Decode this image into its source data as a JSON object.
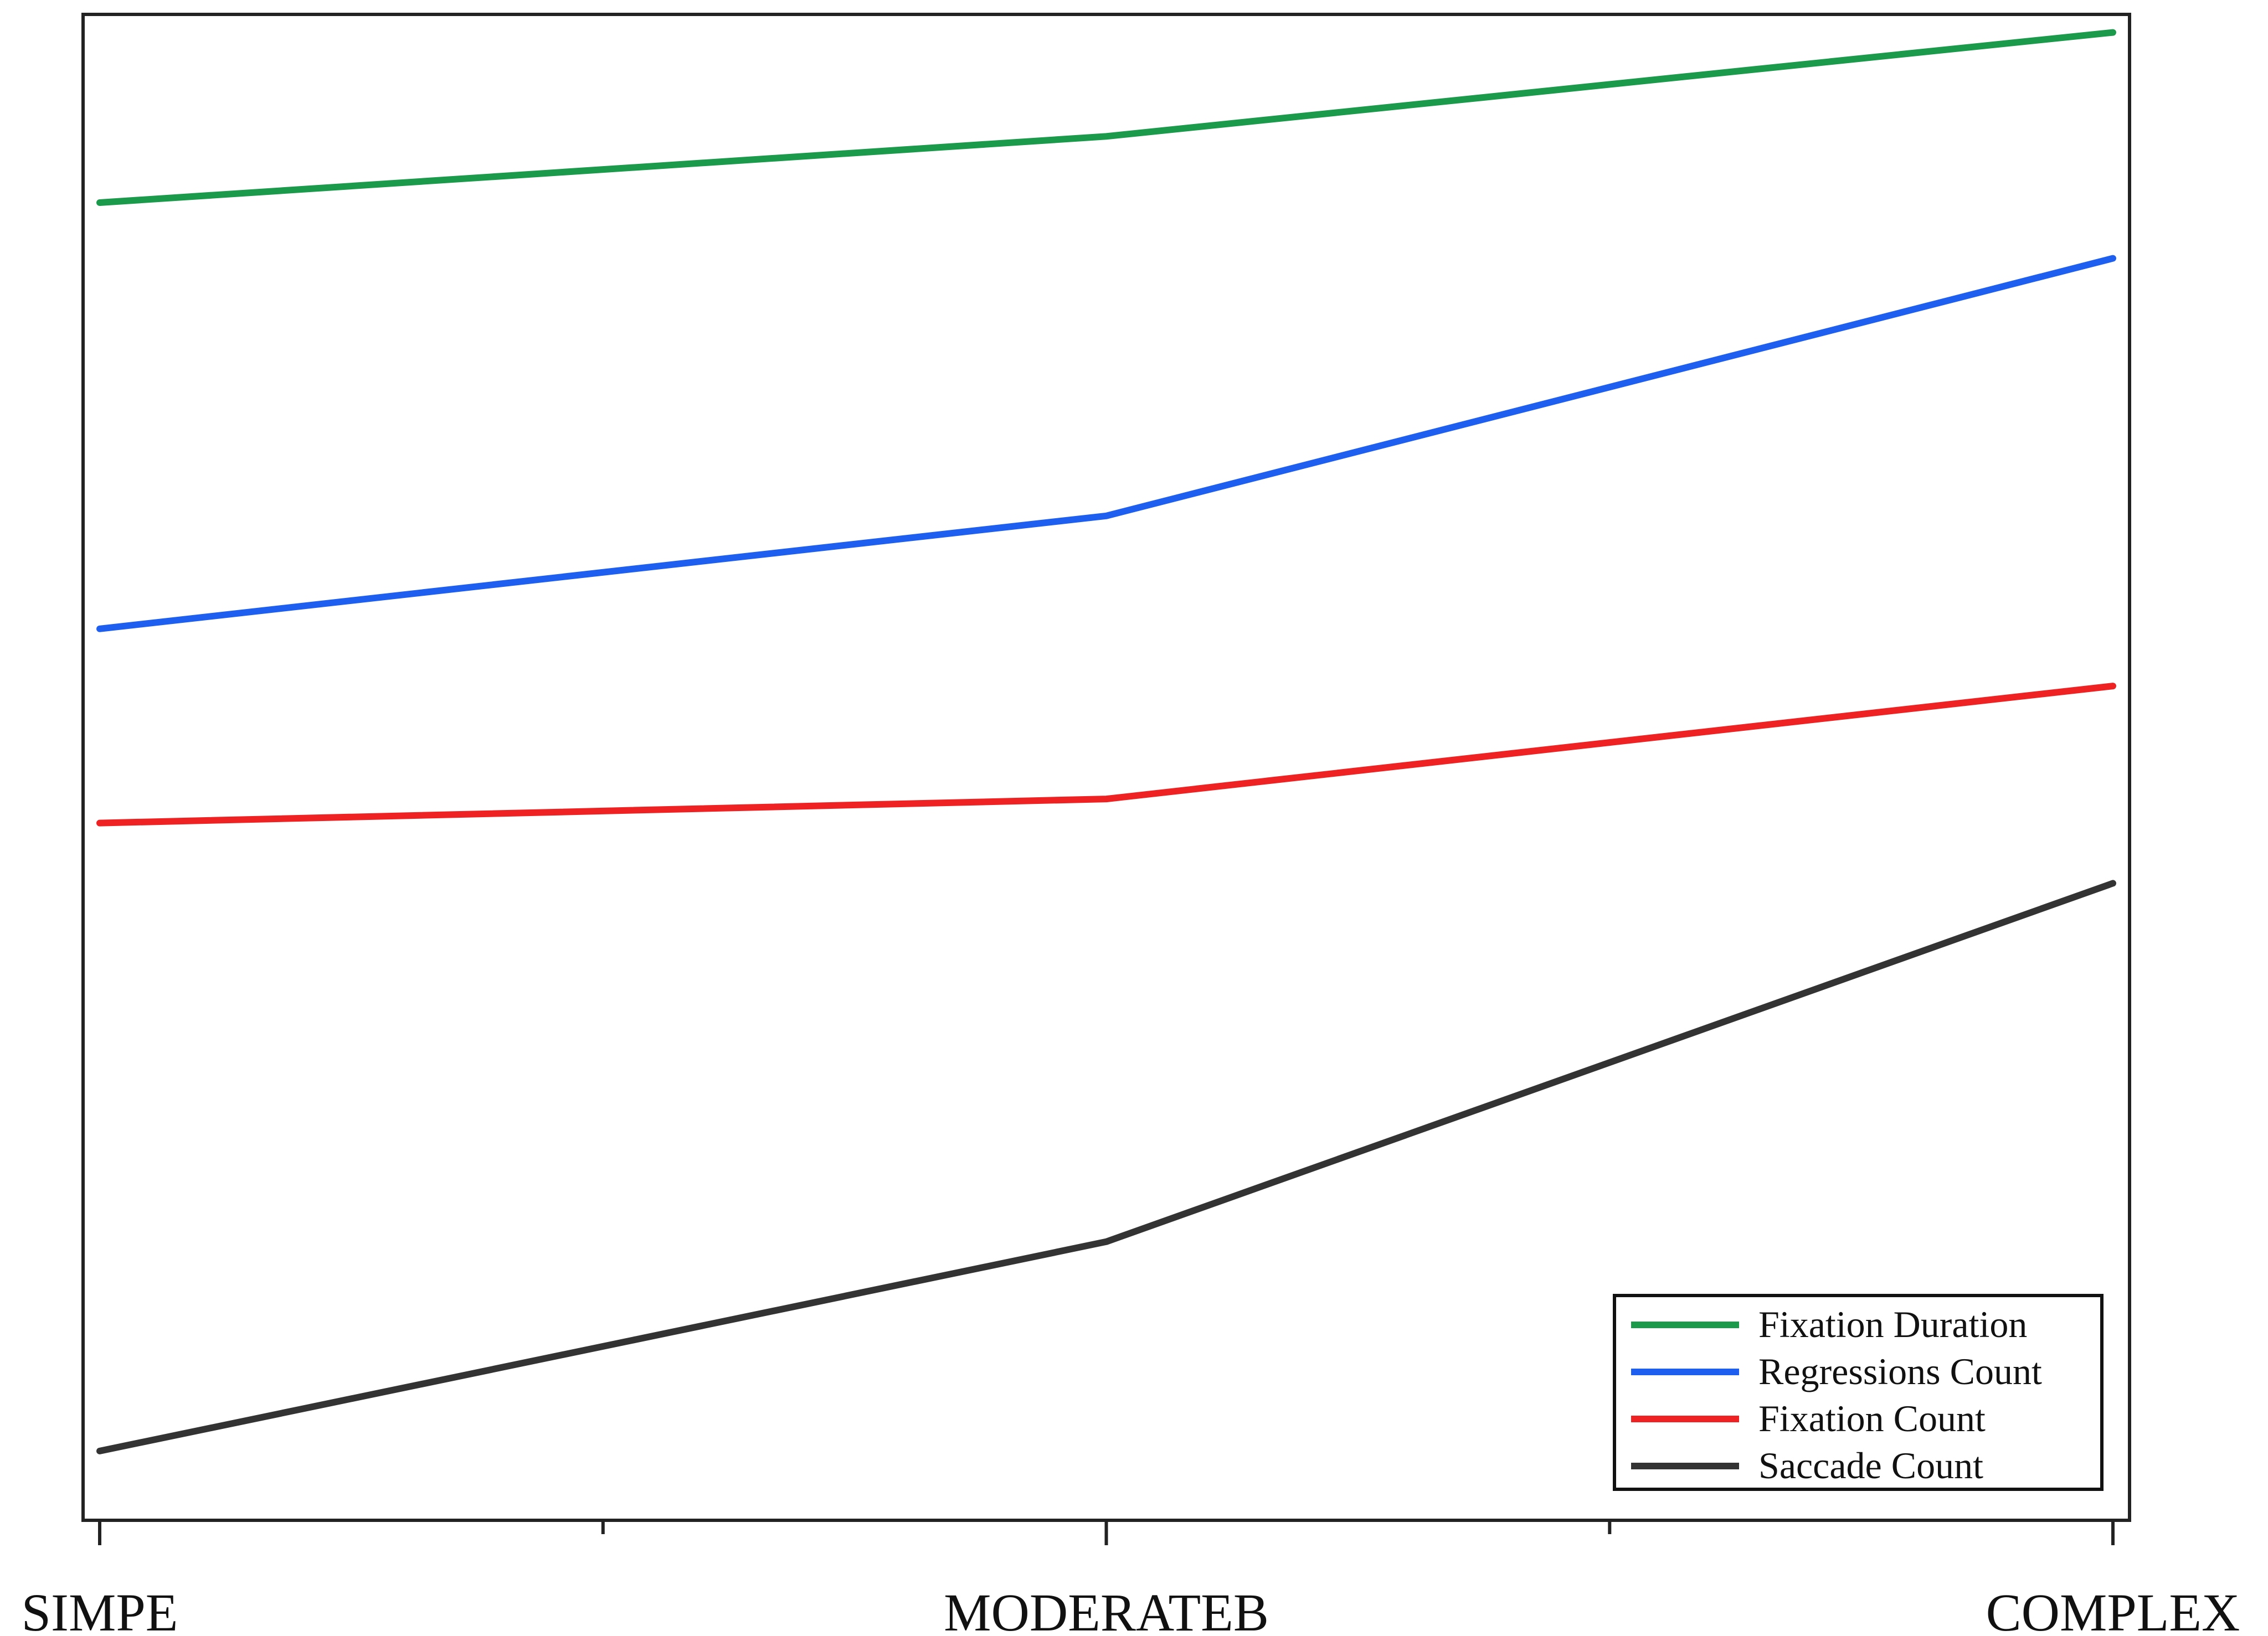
{
  "chart_data": {
    "type": "line",
    "title": "",
    "xlabel": "",
    "ylabel": "",
    "categories": [
      "SIMPE",
      "MODERATEB",
      "COMPLEX"
    ],
    "ylim": [
      0,
      100
    ],
    "y_tick_labels_shown": false,
    "grid": false,
    "legend_position": "bottom-right",
    "series": [
      {
        "name": "Fixation Duration",
        "color": "#1a9a4a",
        "values": [
          87.5,
          91.9,
          98.8
        ]
      },
      {
        "name": "Regressions Count",
        "color": "#1f5ff0",
        "values": [
          59.2,
          66.7,
          83.8
        ]
      },
      {
        "name": "Fixation Count",
        "color": "#ee2222",
        "values": [
          46.3,
          47.9,
          55.4
        ]
      },
      {
        "name": "Saccade Count",
        "color": "#333333",
        "values": [
          4.6,
          18.5,
          42.3
        ]
      }
    ]
  }
}
